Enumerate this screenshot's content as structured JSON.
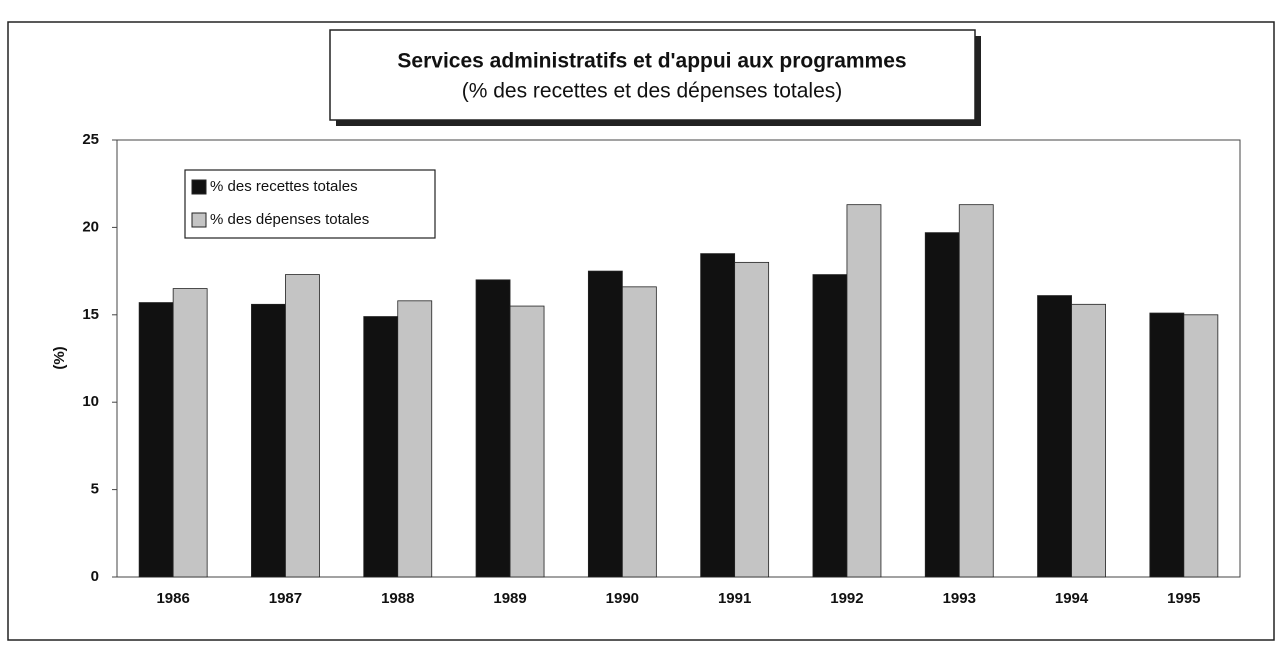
{
  "chart_data": {
    "type": "bar",
    "title": "Services administratifs et d'appui aux programmes",
    "subtitle": "(% des recettes et des dépenses totales)",
    "y_label": "(%)",
    "categories": [
      "1986",
      "1987",
      "1988",
      "1989",
      "1990",
      "1991",
      "1992",
      "1993",
      "1994",
      "1995"
    ],
    "series": [
      {
        "name": "% des recettes totales",
        "color": "#111111",
        "values": [
          15.7,
          15.6,
          14.9,
          17.0,
          17.5,
          18.5,
          17.3,
          19.7,
          16.1,
          15.1
        ]
      },
      {
        "name": "% des dépenses totales",
        "color": "#c4c4c4",
        "values": [
          16.5,
          17.3,
          15.8,
          15.5,
          16.6,
          18.0,
          21.3,
          21.3,
          15.6,
          15.0
        ]
      }
    ],
    "ylim": [
      0,
      25
    ],
    "yticks": [
      0,
      5,
      10,
      15,
      20,
      25
    ],
    "grid": false,
    "legend": "upper left"
  }
}
